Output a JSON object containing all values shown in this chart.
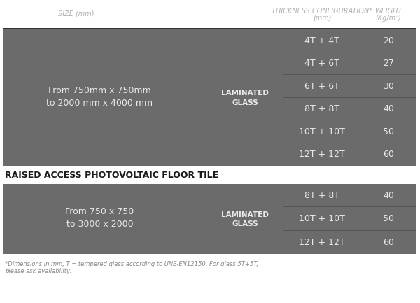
{
  "bg_color": "#ffffff",
  "header_text_color": "#b0b0b0",
  "table_bg": "#6b6b6b",
  "table_text_color": "#e8e8e8",
  "section_label_color": "#1a1a1a",
  "footer_color": "#888888",
  "header_row": [
    "SIZE (mm)",
    "THICKNESS CONFIGURATION*\n(mm)",
    "WEIGHT\n(Kg/m²)"
  ],
  "section1_size": "From 750mm x 750mm\nto 2000 mm x 4000 mm",
  "section1_type": "LAMINATED\nGLASS",
  "section1_configs": [
    [
      "4T + 4T",
      "20"
    ],
    [
      "4T + 6T",
      "27"
    ],
    [
      "6T + 6T",
      "30"
    ],
    [
      "8T + 8T",
      "40"
    ],
    [
      "10T + 10T",
      "50"
    ],
    [
      "12T + 12T",
      "60"
    ]
  ],
  "section2_title": "RAISED ACCESS PHOTOVOLTAIC FLOOR TILE",
  "section2_size": "From 750 x 750\nto 3000 x 2000",
  "section2_type": "LAMINATED\nGLASS",
  "section2_configs": [
    [
      "8T + 8T",
      "40"
    ],
    [
      "10T + 10T",
      "50"
    ],
    [
      "12T + 12T",
      "60"
    ]
  ],
  "footer": "*Dimensions in mm, T = tempered glass according to UNE-EN12150. For glass 5T+5T,\nplease ask availability."
}
